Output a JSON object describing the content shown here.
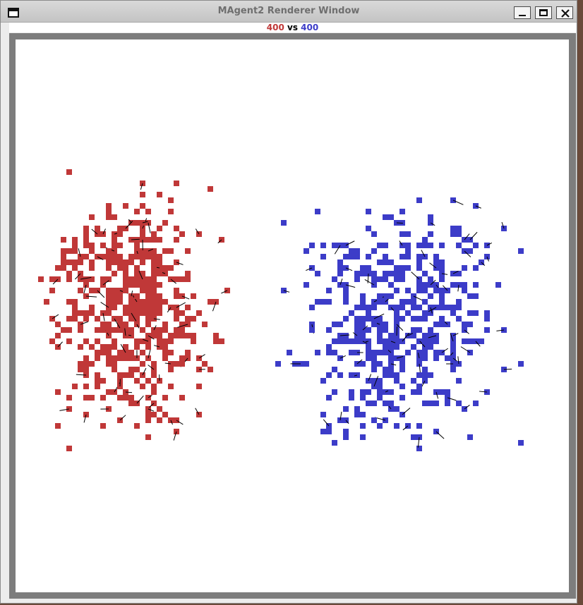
{
  "window": {
    "title": "MAgent2 Renderer Window"
  },
  "score": {
    "red_count": "400",
    "vs_text": "vs",
    "blue_count": "400"
  },
  "colors": {
    "red_team": "#c03838",
    "blue_team": "#3c3cc8",
    "attack_line": "#000000",
    "background": "#ffffff"
  },
  "icons": [
    "window-menu-icon",
    "minimize-icon",
    "maximize-icon",
    "close-icon"
  ]
}
